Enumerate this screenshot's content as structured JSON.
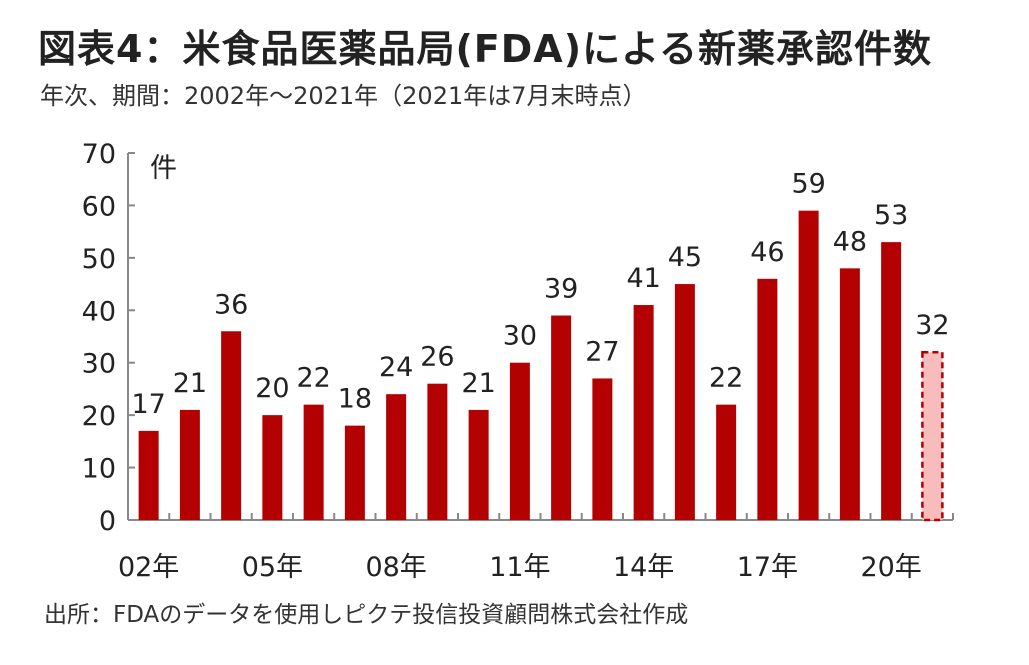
{
  "title": "図表4：米食品医薬品局(FDA)による新薬承認件数",
  "subtitle": "年次、期間：2002年～2021年（2021年は7月末時点）",
  "source": "出所：FDAのデータを使用しピクテ投信投資顧問株式会社作成",
  "chart_data": {
    "type": "bar",
    "title": "図表4：米食品医薬品局(FDA)による新薬承認件数",
    "ylabel": "件",
    "xlabel": "",
    "ylim": [
      0,
      70
    ],
    "yticks": [
      "0",
      "10",
      "20",
      "30",
      "40",
      "50",
      "60",
      "70"
    ],
    "categories": [
      "2002",
      "2003",
      "2004",
      "2005",
      "2006",
      "2007",
      "2008",
      "2009",
      "2010",
      "2011",
      "2012",
      "2013",
      "2014",
      "2015",
      "2016",
      "2017",
      "2018",
      "2019",
      "2020",
      "2021"
    ],
    "values": [
      17,
      21,
      36,
      20,
      22,
      18,
      24,
      26,
      21,
      30,
      39,
      27,
      41,
      45,
      22,
      46,
      59,
      48,
      53,
      32
    ],
    "x_tick_labels": [
      {
        "index": 0,
        "label": "02年"
      },
      {
        "index": 3,
        "label": "05年"
      },
      {
        "index": 6,
        "label": "08年"
      },
      {
        "index": 9,
        "label": "11年"
      },
      {
        "index": 12,
        "label": "14年"
      },
      {
        "index": 15,
        "label": "17年"
      },
      {
        "index": 18,
        "label": "20年"
      }
    ],
    "partial_index": 19,
    "colors": {
      "bar": "#b30000",
      "partial_fill": "#f8bcbc",
      "partial_stroke": "#b30000",
      "axis": "#888888"
    },
    "grid": false
  }
}
